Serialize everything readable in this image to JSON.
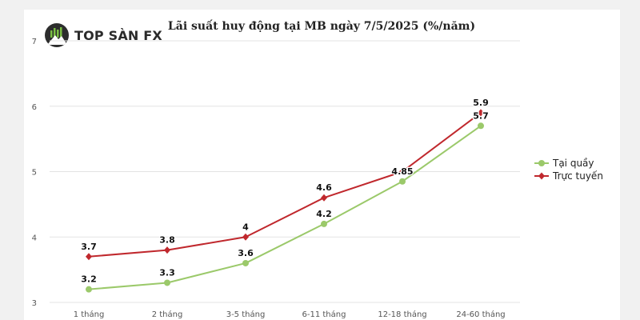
{
  "brand": {
    "logo_text": "TOP SÀN FX"
  },
  "colors": {
    "tai_quay": "#9bc96a",
    "truc_tuyen": "#c0282d"
  },
  "chart_data": {
    "type": "line",
    "title": "Lãi suất huy động tại MB ngày 7/5/2025 (%/năm)",
    "xlabel": "",
    "ylabel": "",
    "categories": [
      "1 tháng",
      "2 tháng",
      "3-5 tháng",
      "6-11 tháng",
      "12-18 tháng",
      "24-60 tháng"
    ],
    "ylim": [
      3,
      7
    ],
    "yticks": [
      "3",
      "4",
      "5",
      "6",
      "7"
    ],
    "grid": true,
    "legend_position": "right",
    "series": [
      {
        "name": "Tại quầy",
        "marker": "circle",
        "values": [
          3.2,
          3.3,
          3.6,
          4.2,
          4.85,
          5.7
        ],
        "labels": [
          "3.2",
          "3.3",
          "3.6",
          "4.2",
          "4.85",
          "5.7"
        ]
      },
      {
        "name": "Trực tuyến",
        "marker": "diamond",
        "values": [
          3.7,
          3.8,
          4,
          4.6,
          5,
          5.9
        ],
        "labels": [
          "3.7",
          "3.8",
          "4",
          "4.6",
          "",
          "5.9"
        ]
      }
    ]
  }
}
